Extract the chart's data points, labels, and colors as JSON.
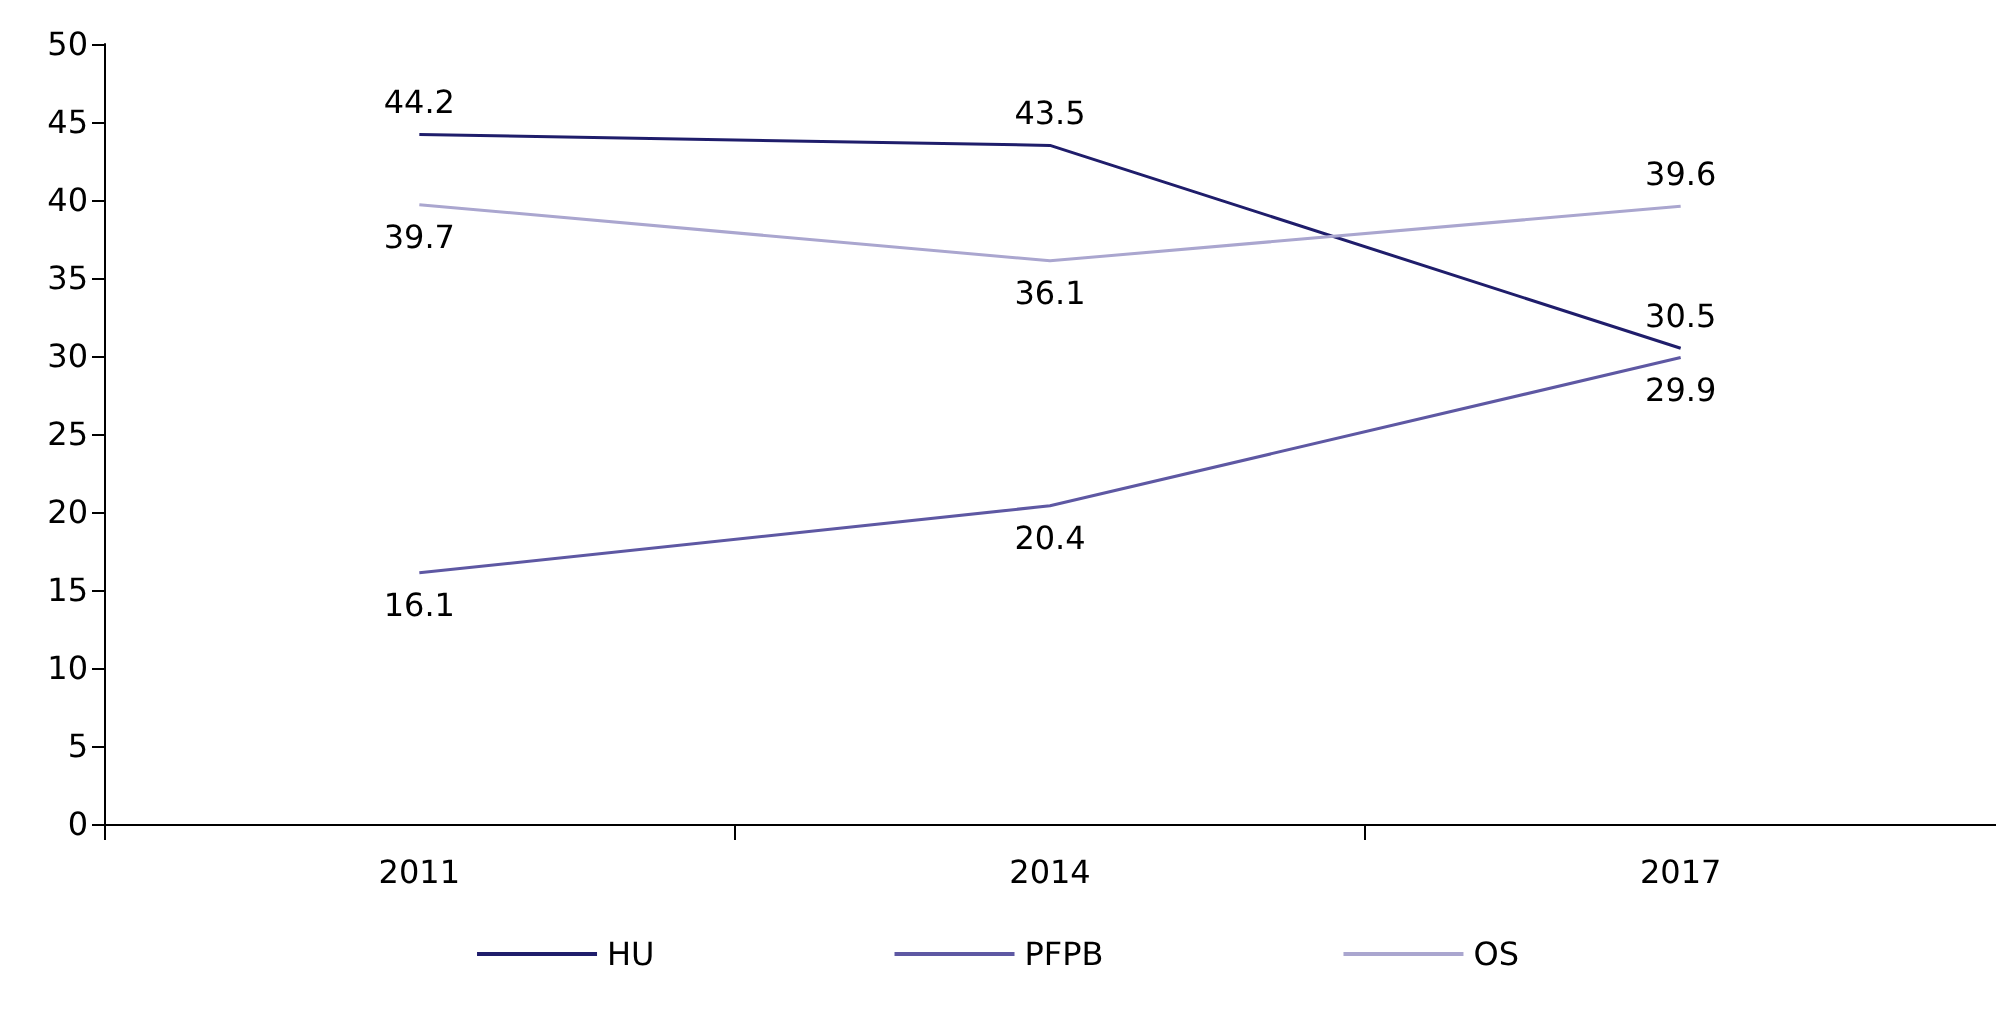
{
  "chart_data": {
    "type": "line",
    "categories": [
      "2011",
      "2014",
      "2017"
    ],
    "series": [
      {
        "name": "HU",
        "color": "#1f1d6b",
        "values": [
          44.2,
          43.5,
          30.5
        ]
      },
      {
        "name": "PFPB",
        "color": "#5e58a3",
        "values": [
          16.1,
          20.4,
          29.9
        ]
      },
      {
        "name": "OS",
        "color": "#aaa6cf",
        "values": [
          39.7,
          36.1,
          39.6
        ]
      }
    ],
    "ylim": [
      0,
      50
    ],
    "yticks": [
      0,
      5,
      10,
      15,
      20,
      25,
      30,
      35,
      40,
      45,
      50
    ],
    "grid": false,
    "legend": "bottom",
    "data_labels": true,
    "marker": "none",
    "line_style": "solid"
  }
}
